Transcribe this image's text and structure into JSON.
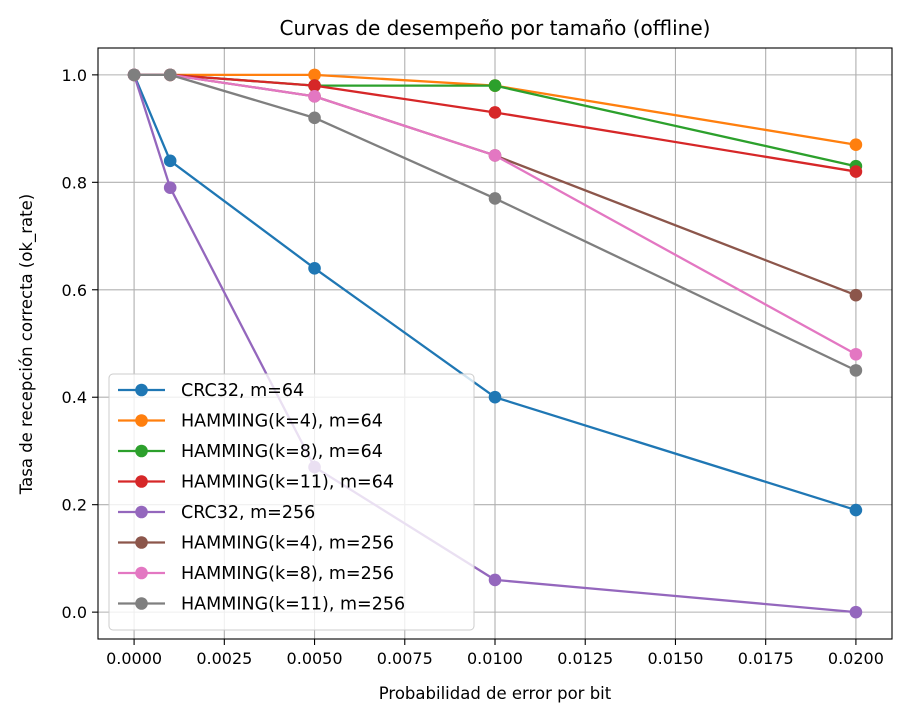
{
  "chart_data": {
    "type": "line",
    "title": "Curvas de desempeño por tamaño (offline)",
    "xlabel": "Probabilidad de error por bit",
    "ylabel": "Tasa de recepción correcta (ok_rate)",
    "x": [
      0.0,
      0.001,
      0.005,
      0.01,
      0.02
    ],
    "xlim": [
      -0.001,
      0.021
    ],
    "ylim": [
      -0.05,
      1.05
    ],
    "xticks": [
      0.0,
      0.0025,
      0.005,
      0.0075,
      0.01,
      0.0125,
      0.015,
      0.0175,
      0.02
    ],
    "xtick_labels": [
      "0.0000",
      "0.0025",
      "0.0050",
      "0.0075",
      "0.0100",
      "0.0125",
      "0.0150",
      "0.0175",
      "0.0200"
    ],
    "yticks": [
      0.0,
      0.2,
      0.4,
      0.6,
      0.8,
      1.0
    ],
    "ytick_labels": [
      "0.0",
      "0.2",
      "0.4",
      "0.6",
      "0.8",
      "1.0"
    ],
    "grid": true,
    "legend_position": "lower-left",
    "series": [
      {
        "name": "CRC32, m=64",
        "color": "#1f77b4",
        "values": [
          1.0,
          0.84,
          0.64,
          0.4,
          0.19
        ]
      },
      {
        "name": "HAMMING(k=4), m=64",
        "color": "#ff7f0e",
        "values": [
          1.0,
          1.0,
          1.0,
          0.98,
          0.87
        ]
      },
      {
        "name": "HAMMING(k=8), m=64",
        "color": "#2ca02c",
        "values": [
          1.0,
          1.0,
          0.98,
          0.98,
          0.83
        ]
      },
      {
        "name": "HAMMING(k=11), m=64",
        "color": "#d62728",
        "values": [
          1.0,
          1.0,
          0.98,
          0.93,
          0.82
        ]
      },
      {
        "name": "CRC32, m=256",
        "color": "#9467bd",
        "values": [
          1.0,
          0.79,
          0.27,
          0.06,
          0.0
        ]
      },
      {
        "name": "HAMMING(k=4), m=256",
        "color": "#8c564b",
        "values": [
          1.0,
          1.0,
          0.96,
          0.85,
          0.59
        ]
      },
      {
        "name": "HAMMING(k=8), m=256",
        "color": "#e377c2",
        "values": [
          1.0,
          1.0,
          0.96,
          0.85,
          0.48
        ]
      },
      {
        "name": "HAMMING(k=11), m=256",
        "color": "#7f7f7f",
        "values": [
          1.0,
          1.0,
          0.92,
          0.77,
          0.45
        ]
      }
    ]
  }
}
